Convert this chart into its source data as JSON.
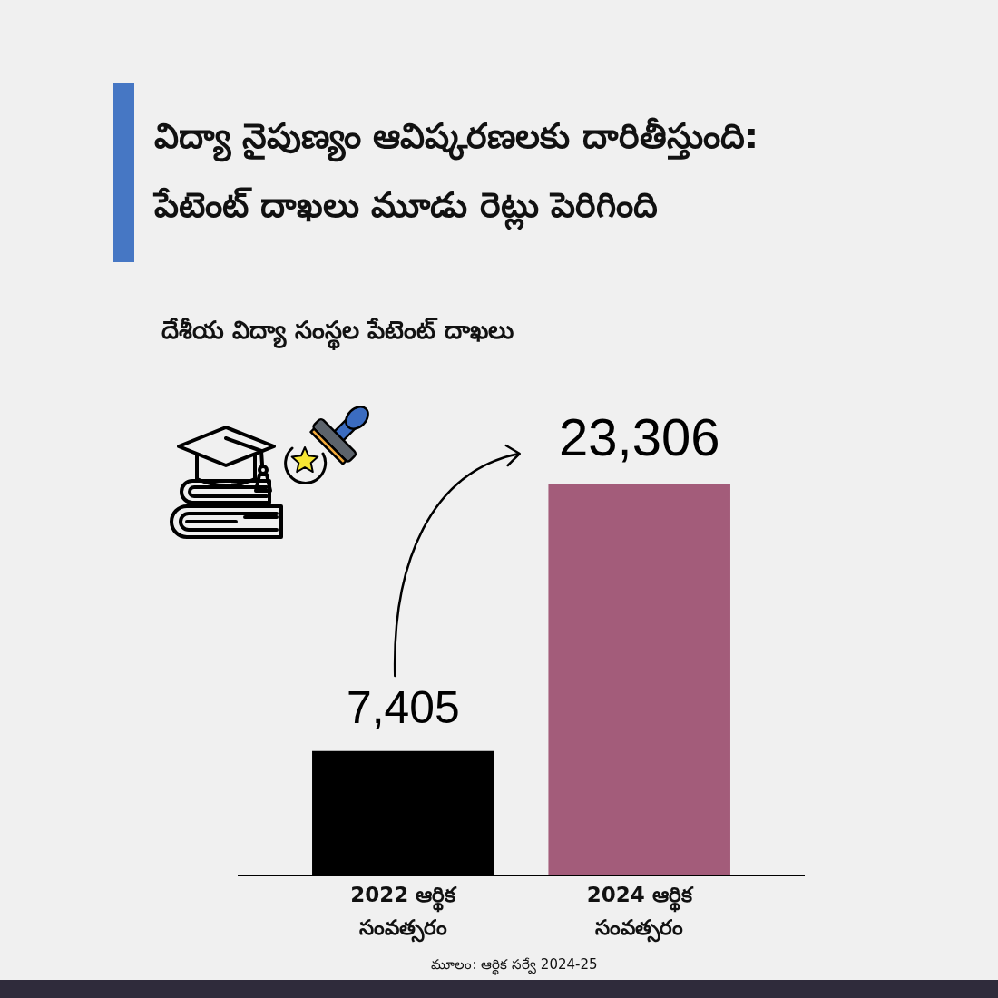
{
  "chart_data": {
    "type": "bar",
    "title": "విద్యా నైపుణ్యం ఆవిష్కరణలకు దారితీస్తుంది: పేటెంట్ దాఖలు మూడు రెట్లు పెరిగింది",
    "subtitle": "దేశీయ విద్యా సంస్థల పేటెంట్ దాఖలు",
    "categories": [
      "2022 ఆర్థిక సంవత్సరం",
      "2024 ఆర్థిక సంవత్సరం"
    ],
    "values": [
      7405,
      23306
    ],
    "colors": [
      "#000000",
      "#a35c7a"
    ],
    "value_labels": [
      "7,405",
      "23,306"
    ],
    "annotations": [
      "మూలం: ఆర్థిక సర్వే 2024-25"
    ]
  }
}
